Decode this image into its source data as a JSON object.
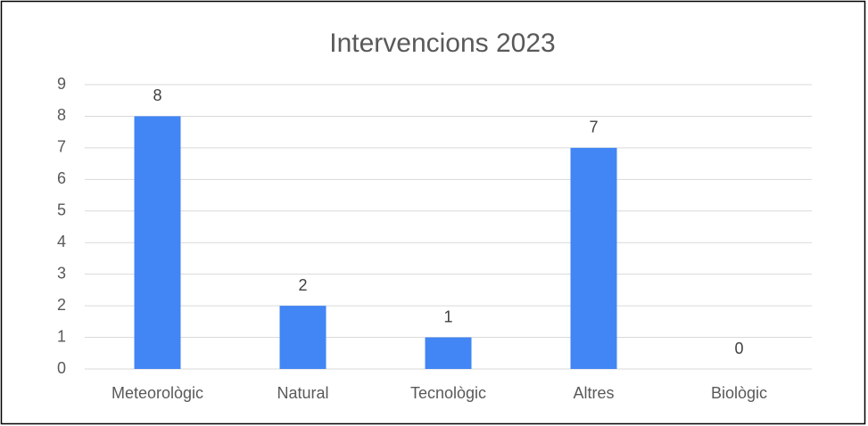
{
  "chart_data": {
    "type": "bar",
    "title": "Intervencions 2023",
    "categories": [
      "Meteorològic",
      "Natural",
      "Tecnològic",
      "Altres",
      "Biològic"
    ],
    "values": [
      8,
      2,
      1,
      7,
      0
    ],
    "color": "#4285f4",
    "ylim": [
      0,
      9
    ],
    "yticks": [
      0,
      1,
      2,
      3,
      4,
      5,
      6,
      7,
      8,
      9
    ],
    "grid": true
  }
}
